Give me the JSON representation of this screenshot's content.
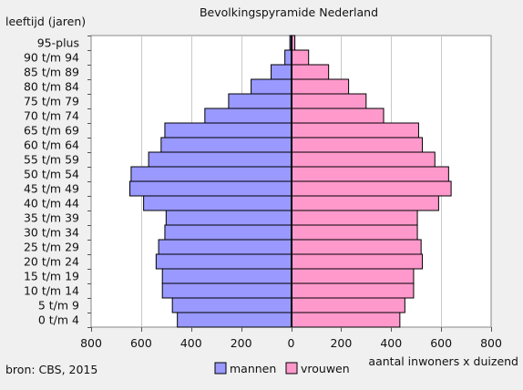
{
  "chart_data": {
    "type": "bar",
    "orientation": "horizontal",
    "layout": "population-pyramid",
    "title": "Bevolkingspyramide   Nederland",
    "ylabel": "leeftijd  (jaren)",
    "xlabel": "aantal  inwoners  x duizend",
    "source": "bron:  CBS,   2015",
    "xlim": [
      -800,
      800
    ],
    "xticks": [
      -800,
      -600,
      -400,
      -200,
      0,
      200,
      400,
      600,
      800
    ],
    "xtick_labels": [
      "800",
      "600",
      "400",
      "200",
      "0",
      "200",
      "400",
      "600",
      "800"
    ],
    "grid": true,
    "legend_position": "bottom-center",
    "categories": [
      "0 t/m 4",
      "5 t/m 9",
      "10 t/m 14",
      "15 t/m 19",
      "20 t/m 24",
      "25 t/m 29",
      "30 t/m 34",
      "35 t/m 39",
      "40 t/m 44",
      "45 t/m 49",
      "50 t/m 54",
      "55 t/m 59",
      "60 t/m 64",
      "65 t/m 69",
      "70 t/m 74",
      "75 t/m 79",
      "80 t/m 84",
      "85 t/m 89",
      "90 t/m 94",
      "95-plus"
    ],
    "series": [
      {
        "name": "mannen",
        "color": "#9999ff",
        "side": "left",
        "values": [
          455,
          475,
          515,
          515,
          540,
          530,
          505,
          500,
          590,
          645,
          640,
          570,
          520,
          505,
          345,
          250,
          160,
          80,
          25,
          5
        ]
      },
      {
        "name": "vrouwen",
        "color": "#ff99cc",
        "side": "right",
        "values": [
          435,
          455,
          490,
          490,
          525,
          520,
          505,
          505,
          590,
          640,
          630,
          575,
          525,
          510,
          370,
          300,
          230,
          150,
          70,
          15
        ]
      }
    ]
  }
}
